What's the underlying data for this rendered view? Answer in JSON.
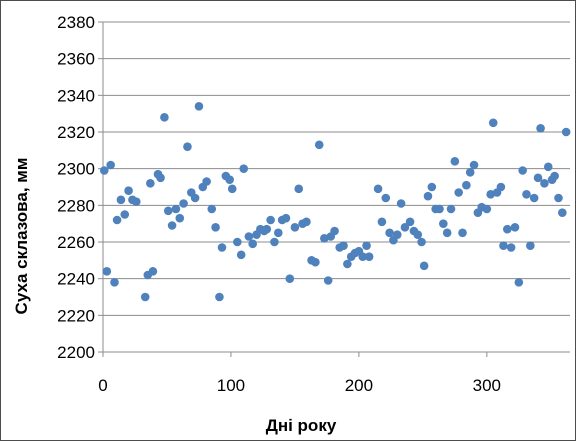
{
  "chart_data": {
    "type": "scatter",
    "title": "",
    "xlabel": "Дні року",
    "ylabel": "Суха склазова,  мм",
    "xlim": [
      0,
      365
    ],
    "ylim": [
      2200,
      2380
    ],
    "xticks": [
      0,
      100,
      200,
      300
    ],
    "yticks": [
      2200,
      2220,
      2240,
      2260,
      2280,
      2300,
      2320,
      2340,
      2360,
      2380
    ],
    "grid": "horizontal",
    "legend": "none",
    "marker_color": "#4f81bd",
    "series": [
      {
        "points": [
          [
            1,
            2299
          ],
          [
            3,
            2244
          ],
          [
            6,
            2302
          ],
          [
            9,
            2238
          ],
          [
            11,
            2272
          ],
          [
            14,
            2283
          ],
          [
            17,
            2275
          ],
          [
            20,
            2288
          ],
          [
            23,
            2283
          ],
          [
            26,
            2282
          ],
          [
            33,
            2230
          ],
          [
            35,
            2242
          ],
          [
            37,
            2292
          ],
          [
            39,
            2244
          ],
          [
            43,
            2297
          ],
          [
            45,
            2295
          ],
          [
            48,
            2328
          ],
          [
            51,
            2277
          ],
          [
            54,
            2269
          ],
          [
            57,
            2278
          ],
          [
            60,
            2273
          ],
          [
            63,
            2281
          ],
          [
            66,
            2312
          ],
          [
            69,
            2287
          ],
          [
            72,
            2284
          ],
          [
            75,
            2334
          ],
          [
            78,
            2290
          ],
          [
            81,
            2293
          ],
          [
            85,
            2278
          ],
          [
            88,
            2268
          ],
          [
            91,
            2230
          ],
          [
            93,
            2257
          ],
          [
            96,
            2296
          ],
          [
            99,
            2294
          ],
          [
            101,
            2289
          ],
          [
            105,
            2260
          ],
          [
            108,
            2253
          ],
          [
            110,
            2300
          ],
          [
            114,
            2263
          ],
          [
            117,
            2259
          ],
          [
            120,
            2264
          ],
          [
            123,
            2267
          ],
          [
            126,
            2266
          ],
          [
            128,
            2267
          ],
          [
            131,
            2272
          ],
          [
            134,
            2260
          ],
          [
            137,
            2265
          ],
          [
            140,
            2272
          ],
          [
            143,
            2273
          ],
          [
            146,
            2240
          ],
          [
            150,
            2268
          ],
          [
            153,
            2289
          ],
          [
            156,
            2270
          ],
          [
            159,
            2271
          ],
          [
            163,
            2250
          ],
          [
            166,
            2249
          ],
          [
            169,
            2313
          ],
          [
            173,
            2262
          ],
          [
            176,
            2239
          ],
          [
            178,
            2263
          ],
          [
            181,
            2266
          ],
          [
            185,
            2257
          ],
          [
            188,
            2258
          ],
          [
            191,
            2248
          ],
          [
            194,
            2252
          ],
          [
            197,
            2254
          ],
          [
            200,
            2255
          ],
          [
            203,
            2252
          ],
          [
            206,
            2258
          ],
          [
            208,
            2252
          ],
          [
            215,
            2289
          ],
          [
            218,
            2271
          ],
          [
            221,
            2284
          ],
          [
            224,
            2265
          ],
          [
            227,
            2261
          ],
          [
            230,
            2264
          ],
          [
            233,
            2281
          ],
          [
            236,
            2268
          ],
          [
            240,
            2271
          ],
          [
            243,
            2266
          ],
          [
            246,
            2264
          ],
          [
            249,
            2260
          ],
          [
            251,
            2247
          ],
          [
            254,
            2285
          ],
          [
            257,
            2290
          ],
          [
            260,
            2278
          ],
          [
            263,
            2278
          ],
          [
            266,
            2270
          ],
          [
            269,
            2265
          ],
          [
            272,
            2278
          ],
          [
            275,
            2304
          ],
          [
            278,
            2287
          ],
          [
            281,
            2265
          ],
          [
            284,
            2291
          ],
          [
            287,
            2298
          ],
          [
            290,
            2302
          ],
          [
            293,
            2276
          ],
          [
            296,
            2279
          ],
          [
            300,
            2278
          ],
          [
            303,
            2286
          ],
          [
            305,
            2325
          ],
          [
            308,
            2287
          ],
          [
            311,
            2290
          ],
          [
            313,
            2258
          ],
          [
            316,
            2267
          ],
          [
            319,
            2257
          ],
          [
            322,
            2268
          ],
          [
            325,
            2238
          ],
          [
            328,
            2299
          ],
          [
            331,
            2286
          ],
          [
            334,
            2258
          ],
          [
            337,
            2284
          ],
          [
            340,
            2295
          ],
          [
            342,
            2322
          ],
          [
            345,
            2292
          ],
          [
            348,
            2301
          ],
          [
            351,
            2294
          ],
          [
            353,
            2296
          ],
          [
            356,
            2284
          ],
          [
            359,
            2276
          ],
          [
            362,
            2320
          ]
        ]
      }
    ]
  }
}
